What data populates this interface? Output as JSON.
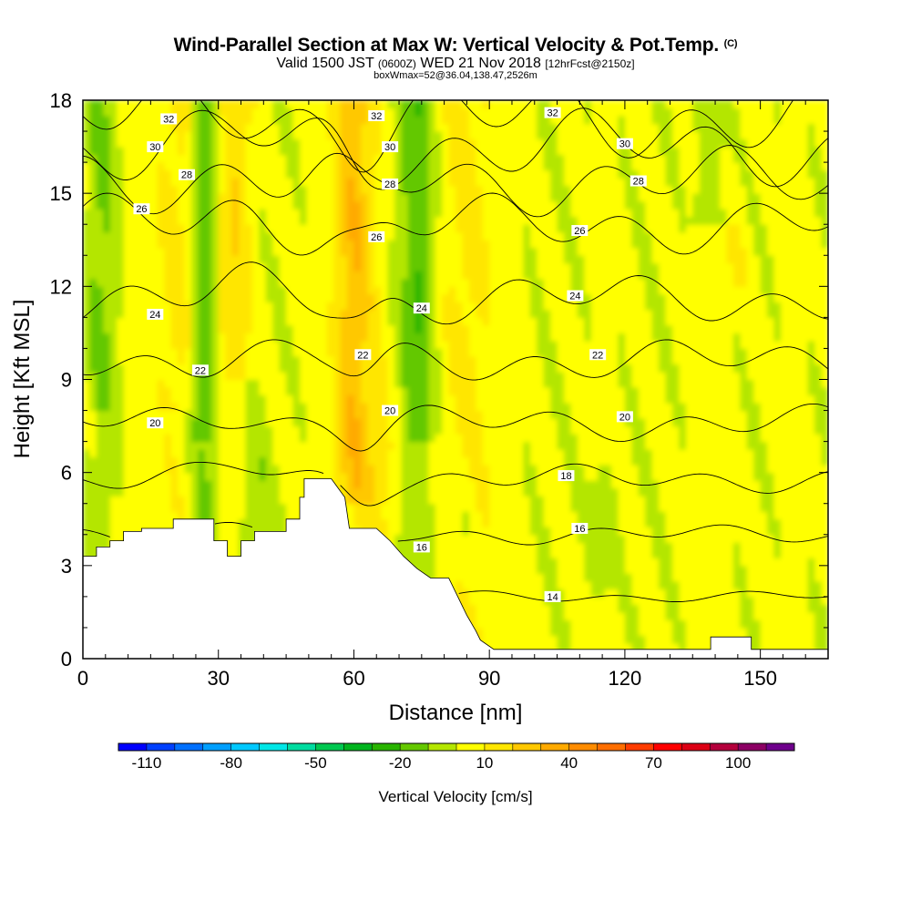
{
  "title": {
    "main": "Wind-Parallel Section at Max W: Vertical Velocity & Pot.Temp.",
    "copyright": "(C)",
    "valid": "Valid 1500 JST",
    "valid_utc": "(0600Z)",
    "valid_date": "WED 21 Nov 2018",
    "forecast": "[12hrFcst@2150z]",
    "box": "boxWmax=52@36.04,138.47,2526m"
  },
  "chart_data": {
    "type": "heatmap",
    "title": "Wind-Parallel Section at Max W: Vertical Velocity & Pot.Temp.",
    "xlabel": "Distance [nm]",
    "ylabel": "Height [Kft MSL]",
    "xlim": [
      0,
      165
    ],
    "ylim": [
      0,
      18
    ],
    "xticks": [
      0,
      30,
      60,
      90,
      120,
      150
    ],
    "yticks": [
      0,
      3,
      6,
      9,
      12,
      15,
      18
    ],
    "colorbar": {
      "label": "Vertical Velocity [cm/s]",
      "tick_labels": [
        "-110",
        "-80",
        "-50",
        "-20",
        "10",
        "40",
        "70",
        "100"
      ],
      "tick_values": [
        -110,
        -80,
        -50,
        -20,
        10,
        40,
        70,
        100
      ],
      "range": [
        -120,
        120
      ],
      "step": 10,
      "colors": [
        "#0000ff",
        "#0040ff",
        "#0070ff",
        "#009fff",
        "#00c8ff",
        "#00e6e6",
        "#00dca0",
        "#00c850",
        "#00b41e",
        "#28b400",
        "#64c800",
        "#b4e600",
        "#ffff00",
        "#ffe600",
        "#ffc800",
        "#ffaa00",
        "#ff8c00",
        "#ff6e00",
        "#ff3c00",
        "#ff0000",
        "#dc0014",
        "#b4003c",
        "#8c0064",
        "#6e008c"
      ]
    },
    "theta_contours": {
      "values": [
        14,
        16,
        18,
        20,
        22,
        24,
        26,
        28,
        30,
        32
      ],
      "labeled": [
        {
          "text": "32",
          "x": 19,
          "y": 17.4
        },
        {
          "text": "30",
          "x": 16,
          "y": 16.5
        },
        {
          "text": "28",
          "x": 23,
          "y": 15.6
        },
        {
          "text": "26",
          "x": 13,
          "y": 14.5
        },
        {
          "text": "24",
          "x": 16,
          "y": 11.1
        },
        {
          "text": "22",
          "x": 26,
          "y": 9.3
        },
        {
          "text": "20",
          "x": 16,
          "y": 7.6
        },
        {
          "text": "32",
          "x": 65,
          "y": 17.5
        },
        {
          "text": "30",
          "x": 68,
          "y": 16.5
        },
        {
          "text": "28",
          "x": 68,
          "y": 15.3
        },
        {
          "text": "26",
          "x": 65,
          "y": 13.6
        },
        {
          "text": "24",
          "x": 75,
          "y": 11.3
        },
        {
          "text": "22",
          "x": 62,
          "y": 9.8
        },
        {
          "text": "20",
          "x": 68,
          "y": 8.0
        },
        {
          "text": "16",
          "x": 75,
          "y": 3.6
        },
        {
          "text": "32",
          "x": 104,
          "y": 17.6
        },
        {
          "text": "30",
          "x": 120,
          "y": 16.6
        },
        {
          "text": "28",
          "x": 123,
          "y": 15.4
        },
        {
          "text": "26",
          "x": 110,
          "y": 13.8
        },
        {
          "text": "24",
          "x": 109,
          "y": 11.7
        },
        {
          "text": "22",
          "x": 114,
          "y": 9.8
        },
        {
          "text": "20",
          "x": 120,
          "y": 7.8
        },
        {
          "text": "18",
          "x": 107,
          "y": 5.9
        },
        {
          "text": "16",
          "x": 110,
          "y": 4.2
        },
        {
          "text": "14",
          "x": 104,
          "y": 2.0
        }
      ]
    },
    "terrain_kft": {
      "x": [
        0,
        3,
        3,
        6,
        6,
        9,
        9,
        13,
        13,
        20,
        20,
        29,
        29,
        32,
        32,
        35,
        35,
        38,
        38,
        45,
        45,
        48,
        48,
        49,
        49,
        54,
        54,
        55,
        55,
        58,
        58,
        59,
        59,
        65,
        65,
        68,
        68,
        71,
        71,
        74,
        74,
        77,
        77,
        81,
        81,
        83,
        83,
        85,
        85,
        87,
        87,
        88,
        88,
        91,
        91,
        139,
        139,
        148,
        148,
        165
      ],
      "y": [
        3.3,
        3.3,
        3.6,
        3.6,
        3.8,
        3.8,
        4.1,
        4.1,
        4.2,
        4.2,
        4.5,
        4.5,
        3.8,
        3.8,
        3.3,
        3.3,
        3.8,
        3.8,
        4.1,
        4.1,
        4.5,
        4.5,
        5.2,
        5.2,
        5.8,
        5.8,
        5.8,
        5.8,
        5.8,
        5.2,
        5.2,
        4.2,
        4.2,
        4.2,
        4.2,
        3.8,
        3.8,
        3.3,
        3.3,
        2.9,
        2.9,
        2.6,
        2.6,
        2.6,
        2.6,
        2.0,
        2.0,
        1.4,
        1.4,
        0.9,
        0.9,
        0.6,
        0.6,
        0.3,
        0.3,
        0.3,
        0.7,
        0.7,
        0.3,
        0.3
      ]
    }
  }
}
